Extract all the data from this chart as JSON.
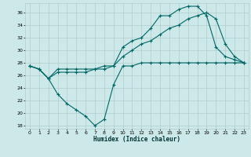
{
  "xlabel": "Humidex (Indice chaleur)",
  "bg_color": "#cde8e8",
  "grid_color": "#b0cccc",
  "line_color": "#006666",
  "xlim": [
    -0.5,
    23.5
  ],
  "ylim": [
    17.5,
    37.5
  ],
  "xticks": [
    0,
    1,
    2,
    3,
    4,
    5,
    6,
    7,
    8,
    9,
    10,
    11,
    12,
    13,
    14,
    15,
    16,
    17,
    18,
    19,
    20,
    21,
    22,
    23
  ],
  "yticks": [
    18,
    20,
    22,
    24,
    26,
    28,
    30,
    32,
    34,
    36
  ],
  "line1_x": [
    0,
    1,
    2,
    3,
    4,
    5,
    6,
    7,
    8,
    9,
    10,
    11,
    12,
    13,
    14,
    15,
    16,
    17,
    18,
    19,
    20,
    21,
    22,
    23
  ],
  "line1_y": [
    27.5,
    27.0,
    25.5,
    23.0,
    21.5,
    20.5,
    19.5,
    18.0,
    19.0,
    24.5,
    27.5,
    27.5,
    28.0,
    28.0,
    28.0,
    28.0,
    28.0,
    28.0,
    28.0,
    28.0,
    28.0,
    28.0,
    28.0,
    28.0
  ],
  "line2_x": [
    0,
    1,
    2,
    3,
    4,
    5,
    6,
    7,
    8,
    9,
    10,
    11,
    12,
    13,
    14,
    15,
    16,
    17,
    18,
    19,
    20,
    21,
    22,
    23
  ],
  "line2_y": [
    27.5,
    27.0,
    25.5,
    27.0,
    27.0,
    27.0,
    27.0,
    27.0,
    27.5,
    27.5,
    30.5,
    31.5,
    32.0,
    33.5,
    35.5,
    35.5,
    36.5,
    37.0,
    37.0,
    35.5,
    30.5,
    29.0,
    28.5,
    28.0
  ],
  "line3_x": [
    0,
    1,
    2,
    3,
    4,
    5,
    6,
    7,
    8,
    9,
    10,
    11,
    12,
    13,
    14,
    15,
    16,
    17,
    18,
    19,
    20,
    21,
    22,
    23
  ],
  "line3_y": [
    27.5,
    27.0,
    25.5,
    26.5,
    26.5,
    26.5,
    26.5,
    27.0,
    27.0,
    27.5,
    29.0,
    30.0,
    31.0,
    31.5,
    32.5,
    33.5,
    34.0,
    35.0,
    35.5,
    36.0,
    35.0,
    31.0,
    29.0,
    28.0
  ]
}
